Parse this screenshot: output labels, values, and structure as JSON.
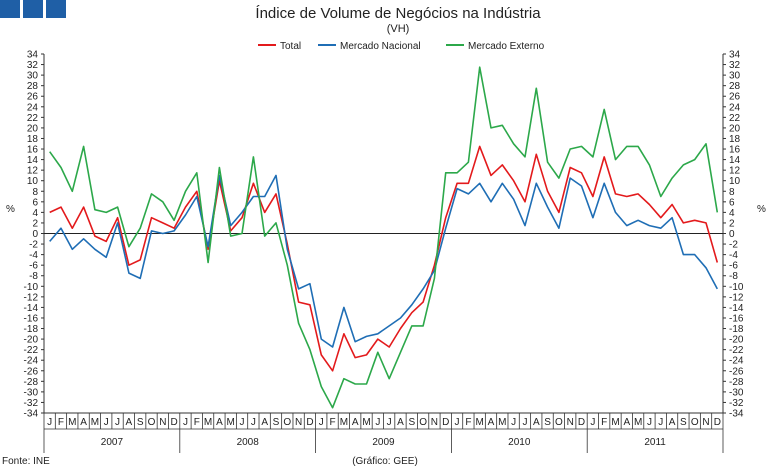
{
  "chart_data": {
    "type": "line",
    "title": "Índice de Volume de Negócios na Indústria",
    "subtitle": "(VH)",
    "ylabel_left": "%",
    "ylabel_right": "%",
    "ylim": [
      -34,
      34
    ],
    "ytick_step": 2,
    "years": [
      "2007",
      "2008",
      "2009",
      "2010",
      "2011"
    ],
    "month_letters": [
      "J",
      "F",
      "M",
      "A",
      "M",
      "J",
      "J",
      "A",
      "S",
      "O",
      "N",
      "D"
    ],
    "source": "Fonte: INE",
    "credit": "(Gráfico: GEE)",
    "series": [
      {
        "name": "Total",
        "color": "#e31a1c",
        "values": [
          4.0,
          5.0,
          1.0,
          5.0,
          -0.5,
          -1.5,
          3.0,
          -6.0,
          -5.0,
          3.0,
          2.0,
          1.0,
          5.0,
          8.0,
          -3.0,
          10.0,
          0.5,
          3.0,
          9.5,
          4.0,
          7.5,
          -2.0,
          -13.0,
          -13.5,
          -23.0,
          -26.0,
          -19.0,
          -23.5,
          -23.0,
          -20.0,
          -21.5,
          -18.0,
          -15.0,
          -13.0,
          -6.0,
          3.0,
          9.5,
          9.5,
          16.5,
          11.0,
          13.0,
          10.0,
          6.0,
          15.0,
          8.0,
          4.0,
          12.5,
          11.5,
          7.0,
          14.5,
          7.5,
          7.0,
          7.5,
          5.5,
          3.0,
          5.5,
          2.0,
          2.5,
          2.0,
          -5.5
        ]
      },
      {
        "name": "Mercado Nacional",
        "color": "#1f6eb5",
        "values": [
          -1.5,
          1.0,
          -3.0,
          -1.0,
          -3.0,
          -4.5,
          2.0,
          -7.5,
          -8.5,
          0.5,
          0.0,
          0.5,
          3.5,
          7.0,
          -2.5,
          11.0,
          1.5,
          4.0,
          7.0,
          7.0,
          11.0,
          -3.0,
          -10.5,
          -9.5,
          -20.0,
          -21.5,
          -14.0,
          -20.5,
          -19.5,
          -19.0,
          -17.5,
          -16.0,
          -13.5,
          -10.5,
          -7.0,
          1.0,
          8.5,
          7.5,
          9.5,
          6.0,
          9.5,
          6.5,
          1.5,
          9.5,
          5.0,
          1.0,
          10.5,
          9.0,
          3.0,
          9.5,
          4.0,
          1.5,
          2.5,
          1.5,
          1.0,
          3.0,
          -4.0,
          -4.0,
          -6.5,
          -10.5
        ]
      },
      {
        "name": "Mercado Externo",
        "color": "#2ca84a",
        "values": [
          15.5,
          12.5,
          8.0,
          16.5,
          4.5,
          4.0,
          5.0,
          -2.5,
          1.0,
          7.5,
          6.0,
          2.5,
          8.0,
          11.5,
          -5.5,
          12.5,
          -0.5,
          0.0,
          14.5,
          -0.5,
          2.0,
          -6.0,
          -17.0,
          -22.0,
          -29.0,
          -33.0,
          -27.5,
          -28.5,
          -28.5,
          -22.5,
          -27.5,
          -22.5,
          -17.5,
          -17.5,
          -8.5,
          11.5,
          11.5,
          13.5,
          31.5,
          20.0,
          20.5,
          17.0,
          14.5,
          27.5,
          13.5,
          10.5,
          16.0,
          16.5,
          14.5,
          23.5,
          14.0,
          16.5,
          16.5,
          13.0,
          7.0,
          10.5,
          13.0,
          14.0,
          17.0,
          4.0
        ]
      }
    ]
  }
}
